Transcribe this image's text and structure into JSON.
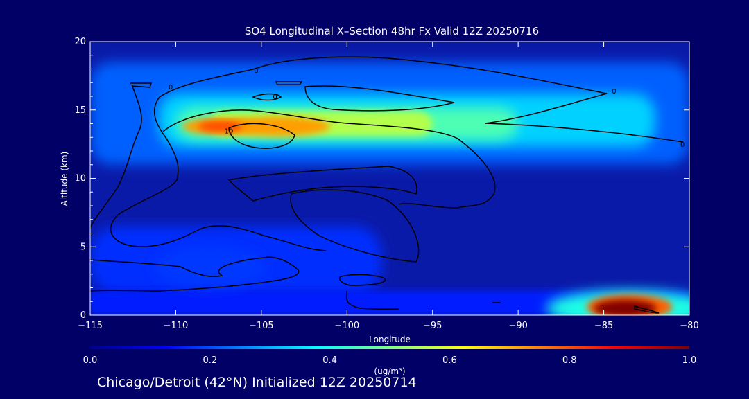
{
  "chart_data": {
    "type": "heatmap",
    "title": "SO4 Longitudinal X–Section 48hr  Fx Valid 12Z 20250716",
    "xlabel": "Longitude",
    "ylabel": "Altitude (km)",
    "xlim": [
      -115,
      -80
    ],
    "ylim": [
      0,
      20
    ],
    "xticks": [
      -115,
      -110,
      -105,
      -100,
      -95,
      -90,
      -85,
      -80
    ],
    "xtick_labels": [
      "−115",
      "−110",
      "−105",
      "−100",
      "−95",
      "−90",
      "−85",
      "−80"
    ],
    "yticks": [
      0,
      5,
      10,
      15,
      20
    ],
    "ytick_labels": [
      "0",
      "5",
      "10",
      "15",
      "20"
    ],
    "colorbar": {
      "min": 0.0,
      "max": 1.0,
      "ticks": [
        0.0,
        0.2,
        0.4,
        0.6,
        0.8,
        1.0
      ],
      "tick_labels": [
        "0.0",
        "0.2",
        "0.4",
        "0.6",
        "0.8",
        "1.0"
      ],
      "units_label": "(ug/m³)"
    },
    "contour_labels": [
      {
        "text": "0",
        "x": -110.3,
        "y": 16.7
      },
      {
        "text": "0",
        "x": -105.3,
        "y": 17.9
      },
      {
        "text": "0",
        "x": -104.2,
        "y": 16.0
      },
      {
        "text": "0",
        "x": -84.4,
        "y": 16.4
      },
      {
        "text": "0",
        "x": -80.4,
        "y": 12.5
      },
      {
        "text": "10",
        "x": -106.9,
        "y": 13.5
      }
    ],
    "concentration_features": [
      {
        "name": "upper-layer",
        "center_lon": -104,
        "center_alt": 13.8,
        "peak": 0.72
      },
      {
        "name": "upper-core",
        "center_lon": -107.4,
        "center_alt": 13.8,
        "peak": 0.8
      },
      {
        "name": "surface-plume",
        "center_lon": -83.5,
        "center_alt": 0.6,
        "peak": 1.0
      },
      {
        "name": "low-level-west",
        "center_lon": -108,
        "center_alt": 3.5,
        "peak": 0.18
      }
    ]
  },
  "footer": {
    "caption": "Chicago/Detroit (42°N) Initialized 12Z 20250714"
  }
}
